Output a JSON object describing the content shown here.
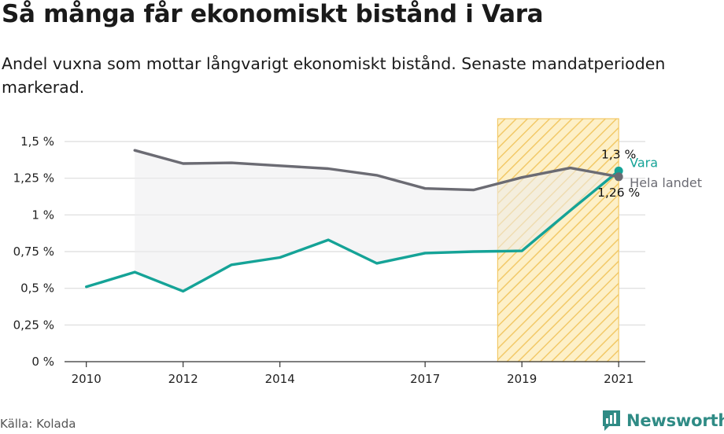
{
  "header": {
    "title": "Så många får ekonomiskt bistånd i Vara",
    "subtitle": "Andel vuxna som mottar långvarigt ekonomiskt bistånd. Senaste mandatperioden markerad."
  },
  "footer": {
    "source": "Källa: Kolada",
    "brand": "Newsworthy"
  },
  "colors": {
    "vara": "#15a397",
    "hela_landet": "#6b6b73",
    "highlight_fill": "#fbe3a6",
    "highlight_stroke": "#f2c968",
    "gap_fill": "#ececef",
    "brand": "#2f8b85"
  },
  "chart_data": {
    "type": "line",
    "title": "Så många får ekonomiskt bistånd i Vara",
    "subtitle": "Andel vuxna som mottar långvarigt ekonomiskt bistånd. Senaste mandatperioden markerad.",
    "x_ticks": [
      2010,
      2012,
      2014,
      2017,
      2019,
      2021
    ],
    "xlim": [
      2009.55,
      2021.55
    ],
    "ylim": [
      0,
      1.5
    ],
    "y_ticks": [
      0,
      0.25,
      0.5,
      0.75,
      1,
      1.25,
      1.5
    ],
    "y_tick_labels": [
      "0 %",
      "0,25 %",
      "0,5 %",
      "0,75 %",
      "1 %",
      "1,25 %",
      "1,5 %"
    ],
    "grid": true,
    "highlight_period": [
      2018.5,
      2021
    ],
    "series": [
      {
        "name": "Vara",
        "key": "vara",
        "x": [
          2010,
          2011,
          2012,
          2013,
          2014,
          2015,
          2016,
          2017,
          2018,
          2019,
          2020,
          2021
        ],
        "values": [
          0.51,
          0.61,
          0.48,
          0.66,
          0.71,
          0.83,
          0.67,
          0.74,
          0.75,
          0.755,
          1.03,
          1.3
        ],
        "last_label": "1,3 %"
      },
      {
        "name": "Hela landet",
        "key": "hela_landet",
        "x": [
          2011,
          2012,
          2013,
          2014,
          2015,
          2016,
          2017,
          2018,
          2019,
          2020,
          2021
        ],
        "values": [
          1.44,
          1.35,
          1.355,
          1.335,
          1.315,
          1.27,
          1.18,
          1.17,
          1.255,
          1.32,
          1.26
        ],
        "last_label": "1,26 %"
      }
    ]
  }
}
